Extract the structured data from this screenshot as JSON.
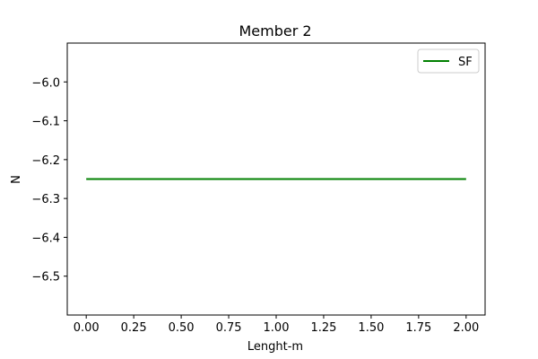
{
  "chart_data": {
    "type": "line",
    "title": "Member 2",
    "xlabel": "Lenght-m",
    "ylabel": "N",
    "xlim": [
      -0.1,
      2.1
    ],
    "ylim": [
      -6.6,
      -5.9
    ],
    "x_ticks": [
      "0.00",
      "0.25",
      "0.50",
      "0.75",
      "1.00",
      "1.25",
      "1.50",
      "1.75",
      "2.00"
    ],
    "x_tick_values": [
      0,
      0.25,
      0.5,
      0.75,
      1.0,
      1.25,
      1.5,
      1.75,
      2.0
    ],
    "y_ticks": [
      "−6.0",
      "−6.1",
      "−6.2",
      "−6.3",
      "−6.4",
      "−6.5"
    ],
    "y_tick_values": [
      -6.0,
      -6.1,
      -6.2,
      -6.3,
      -6.4,
      -6.5
    ],
    "grid": false,
    "legend_position": "top-right",
    "series": [
      {
        "name": "SF",
        "color": "#008000",
        "x": [
          0.0,
          2.0
        ],
        "y": [
          -6.25,
          -6.25
        ]
      }
    ]
  }
}
